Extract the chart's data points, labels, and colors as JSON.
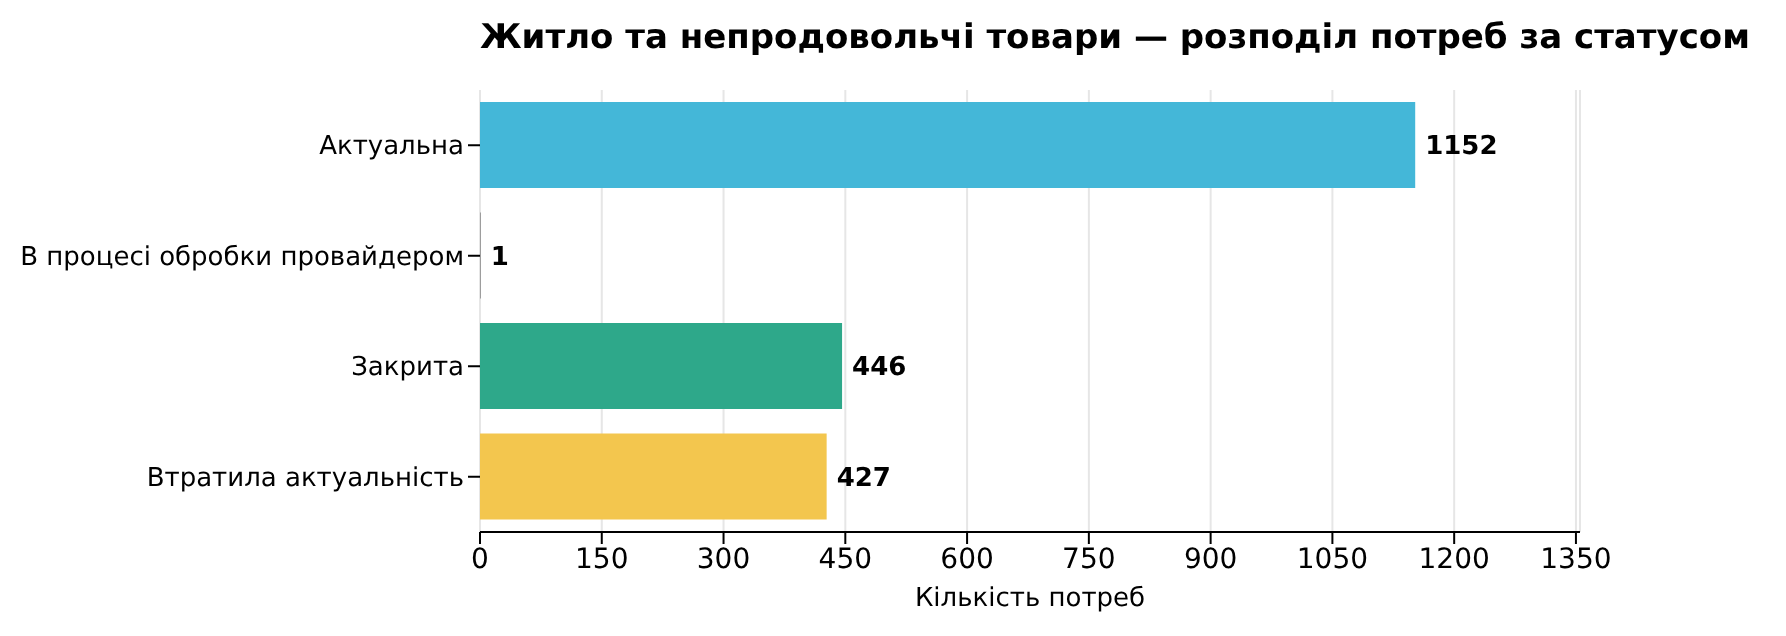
{
  "chart_data": {
    "type": "bar",
    "orientation": "horizontal",
    "title": "Житло та непродовольчі товари — розподіл потреб за статусом",
    "xlabel": "Кількість потреб",
    "categories": [
      "Актуальна",
      "В процесі обробки провайдером",
      "Закрита",
      "Втратила актуальність"
    ],
    "values": [
      1152,
      1,
      446,
      427
    ],
    "colors": [
      "#44b7d8",
      "#8c8c8c",
      "#2ea88a",
      "#f3c64e"
    ],
    "xlim": [
      0,
      1355
    ],
    "xticks": [
      0,
      150,
      300,
      450,
      600,
      750,
      900,
      1050,
      1200,
      1350
    ],
    "grid": "x",
    "data_labels": true
  }
}
